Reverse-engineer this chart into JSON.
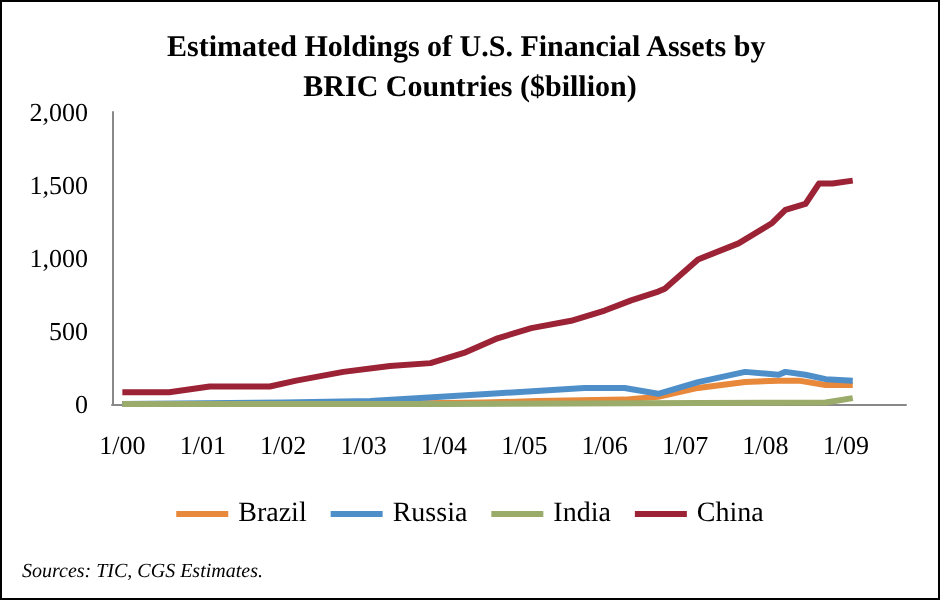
{
  "chart_data": {
    "type": "line",
    "title": "Estimated Holdings of U.S. Financial Assets by BRIC Countries ($billion)",
    "annotations": [
      "Sources: TIC, CGS Estimates."
    ],
    "xlim": [
      "1999-11-15",
      "2009-10"
    ],
    "xticks": [
      {
        "value": "2000-01",
        "label": "1/00"
      },
      {
        "value": "2001-01",
        "label": "1/01"
      },
      {
        "value": "2002-01",
        "label": "1/02"
      },
      {
        "value": "2003-01",
        "label": "1/03"
      },
      {
        "value": "2004-01",
        "label": "1/04"
      },
      {
        "value": "2005-01",
        "label": "1/05"
      },
      {
        "value": "2006-01",
        "label": "1/06"
      },
      {
        "value": "2007-01",
        "label": "1/07"
      },
      {
        "value": "2008-01",
        "label": "1/08"
      },
      {
        "value": "2009-01",
        "label": "1/09"
      }
    ],
    "ylim": [
      0,
      2000
    ],
    "yticks": [
      {
        "value": 0,
        "label": "0"
      },
      {
        "value": 500,
        "label": "500"
      },
      {
        "value": 1000,
        "label": "1,000"
      },
      {
        "value": 1500,
        "label": "1,500"
      },
      {
        "value": 2000,
        "label": "2,000"
      }
    ],
    "grid": false,
    "legend": "bottom",
    "marker": "none",
    "line_style": "solid",
    "series": [
      {
        "name": "Brazil",
        "color": "#e8883a",
        "x": [
          "2000-01",
          "2003-01",
          "2004-07",
          "2005-03",
          "2006-04",
          "2006-09",
          "2007-03",
          "2007-10",
          "2008-03",
          "2008-06",
          "2008-10",
          "2009-02"
        ],
        "values": [
          0,
          0,
          10,
          20,
          30,
          50,
          110,
          150,
          160,
          160,
          130,
          130
        ]
      },
      {
        "name": "Russia",
        "color": "#4f8fc9",
        "x": [
          "2000-01",
          "2002-01",
          "2003-02",
          "2004-08",
          "2005-10",
          "2006-04",
          "2006-09",
          "2007-03",
          "2007-10",
          "2008-03",
          "2008-04",
          "2008-07",
          "2008-10",
          "2009-02"
        ],
        "values": [
          0,
          10,
          20,
          70,
          110,
          110,
          70,
          150,
          220,
          200,
          220,
          200,
          170,
          160
        ]
      },
      {
        "name": "India",
        "color": "#9bab6a",
        "x": [
          "2000-01",
          "2004-01",
          "2008-10",
          "2009-02"
        ],
        "values": [
          0,
          0,
          10,
          40
        ]
      },
      {
        "name": "China",
        "color": "#9b2335",
        "x": [
          "2000-01",
          "2000-08",
          "2001-02",
          "2001-11",
          "2002-03",
          "2002-10",
          "2003-05",
          "2003-11",
          "2004-04",
          "2004-09",
          "2005-02",
          "2005-08",
          "2006-01",
          "2006-05",
          "2006-09",
          "2006-10",
          "2007-03",
          "2007-09",
          "2008-02",
          "2008-04",
          "2008-07",
          "2008-09",
          "2008-11",
          "2009-02"
        ],
        "values": [
          80,
          80,
          120,
          120,
          160,
          220,
          260,
          280,
          350,
          450,
          520,
          570,
          640,
          710,
          770,
          790,
          990,
          1100,
          1240,
          1330,
          1370,
          1510,
          1510,
          1530
        ]
      }
    ]
  }
}
